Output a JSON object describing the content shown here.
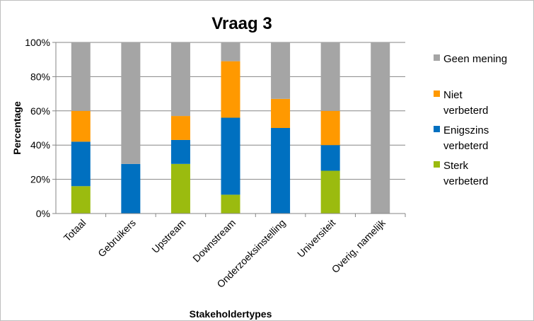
{
  "chart_data": {
    "type": "bar",
    "stacked": true,
    "title": "Vraag 3",
    "xlabel": "Stakeholdertypes",
    "ylabel": "Percentage",
    "ylim": [
      0,
      100
    ],
    "yticks": [
      "0%",
      "20%",
      "40%",
      "60%",
      "80%",
      "100%"
    ],
    "grid": "horizontal",
    "legend_position": "right",
    "categories": [
      "Totaal",
      "Gebruikers",
      "Upstream",
      "Downstream",
      "Onderzoeksinstelling",
      "Universiteit",
      "Overig, namelijk"
    ],
    "series": [
      {
        "name": "Sterk verbeterd",
        "legend_lines": [
          "Sterk",
          "verbeterd"
        ],
        "color": "#9bbb0f",
        "values": [
          16,
          0,
          29,
          11,
          0,
          25,
          0
        ]
      },
      {
        "name": "Enigszins verbeterd",
        "legend_lines": [
          "Enigszins",
          "verbeterd"
        ],
        "color": "#0070c0",
        "values": [
          26,
          29,
          14,
          45,
          50,
          15,
          0
        ]
      },
      {
        "name": "Niet verbeterd",
        "legend_lines": [
          "Niet",
          "verbeterd"
        ],
        "color": "#ff9900",
        "values": [
          18,
          0,
          14,
          33,
          17,
          20,
          0
        ]
      },
      {
        "name": "Geen mening",
        "legend_lines": [
          "Geen mening"
        ],
        "color": "#a5a5a5",
        "values": [
          40,
          71,
          43,
          11,
          33,
          40,
          100
        ]
      }
    ]
  }
}
